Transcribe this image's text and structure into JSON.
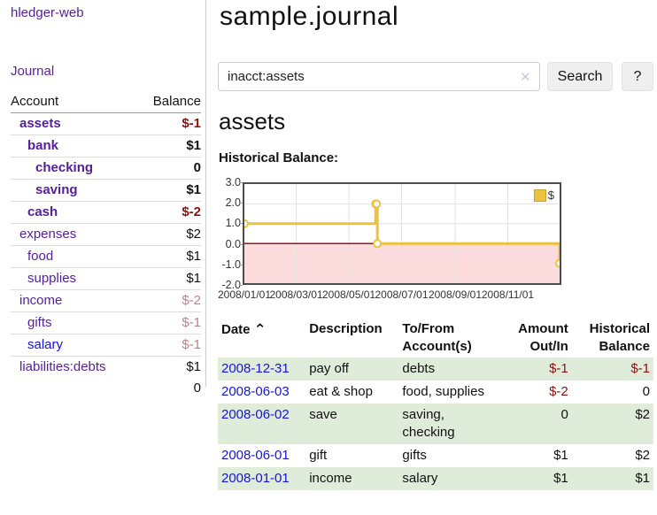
{
  "app": {
    "title": "hledger-web"
  },
  "sidebar": {
    "journal_link": "Journal",
    "accounts_table": {
      "headers": {
        "account": "Account",
        "balance": "Balance"
      },
      "rows": [
        {
          "name": "assets",
          "depth": 0,
          "bold": true,
          "name_color": "purple",
          "balance": "$-1",
          "balance_style": "neg-strong"
        },
        {
          "name": "bank",
          "depth": 1,
          "bold": true,
          "name_color": "purple",
          "balance": "$1",
          "balance_style": "pos"
        },
        {
          "name": "checking",
          "depth": 2,
          "bold": true,
          "name_color": "purple",
          "balance": "0",
          "balance_style": "pos"
        },
        {
          "name": "saving",
          "depth": 2,
          "bold": true,
          "name_color": "purple",
          "balance": "$1",
          "balance_style": "pos"
        },
        {
          "name": "cash",
          "depth": 1,
          "bold": true,
          "name_color": "purple",
          "balance": "$-2",
          "balance_style": "neg-strong"
        },
        {
          "name": "expenses",
          "depth": 0,
          "bold": false,
          "name_color": "purple",
          "balance": "$2",
          "balance_style": "pos"
        },
        {
          "name": "food",
          "depth": 1,
          "bold": false,
          "name_color": "purple",
          "balance": "$1",
          "balance_style": "pos"
        },
        {
          "name": "supplies",
          "depth": 1,
          "bold": false,
          "name_color": "purple",
          "balance": "$1",
          "balance_style": "pos"
        },
        {
          "name": "income",
          "depth": 0,
          "bold": false,
          "name_color": "purple",
          "balance": "$-2",
          "balance_style": "neg-soft"
        },
        {
          "name": "gifts",
          "depth": 1,
          "bold": false,
          "name_color": "purple",
          "balance": "$-1",
          "balance_style": "neg-soft"
        },
        {
          "name": "salary",
          "depth": 1,
          "bold": false,
          "name_color": "blue",
          "balance": "$-1",
          "balance_style": "neg-soft"
        },
        {
          "name": "liabilities:debts",
          "depth": 0,
          "bold": false,
          "name_color": "purple",
          "balance": "$1",
          "balance_style": "pos"
        }
      ],
      "total": "0"
    }
  },
  "header": {
    "title": "sample.journal"
  },
  "search": {
    "value": "inacct:assets",
    "clear_icon": "✕",
    "button_label": "Search",
    "help_label": "?"
  },
  "main": {
    "account_heading": "assets",
    "chart_label": "Historical Balance:"
  },
  "chart_data": {
    "type": "line",
    "style": "step",
    "title": "Historical Balance",
    "series": [
      {
        "name": "$",
        "color": "#edc240",
        "points": [
          [
            "2008-01-01",
            1
          ],
          [
            "2008-06-01",
            2
          ],
          [
            "2008-06-02",
            2
          ],
          [
            "2008-06-03",
            0
          ],
          [
            "2008-12-31",
            -1
          ]
        ]
      }
    ],
    "x_range": [
      "2008-01-01",
      "2008-12-31"
    ],
    "y_range": [
      -2,
      3
    ],
    "y_ticks": [
      "3.0",
      "2.0",
      "1.0",
      "0.0",
      "-1.0",
      "-2.0"
    ],
    "x_ticks": [
      "2008/01/01",
      "2008/03/01",
      "2008/05/01",
      "2008/07/01",
      "2008/09/01",
      "2008/11/01"
    ],
    "legend_position": "top-right",
    "grid": true,
    "negative_region_color": "#fcdcdc",
    "zero_line_color": "#8b0000"
  },
  "transactions_table": {
    "headers": [
      "Date",
      "Description",
      "To/From Account(s)",
      "Amount Out/In",
      "Historical Balance"
    ],
    "sort_icon": "⌃",
    "rows": [
      {
        "date": "2008-12-31",
        "description": "pay off",
        "accounts": "debts",
        "amount": "$-1",
        "amount_neg": true,
        "balance": "$-1",
        "balance_neg": true
      },
      {
        "date": "2008-06-03",
        "description": "eat & shop",
        "accounts": "food, supplies",
        "amount": "$-2",
        "amount_neg": true,
        "balance": "0",
        "balance_neg": false
      },
      {
        "date": "2008-06-02",
        "description": "save",
        "accounts": "saving,\nchecking",
        "amount": "0",
        "amount_neg": false,
        "balance": "$2",
        "balance_neg": false
      },
      {
        "date": "2008-06-01",
        "description": "gift",
        "accounts": "gifts",
        "amount": "$1",
        "amount_neg": false,
        "balance": "$2",
        "balance_neg": false
      },
      {
        "date": "2008-01-01",
        "description": "income",
        "accounts": "salary",
        "amount": "$1",
        "amount_neg": false,
        "balance": "$1",
        "balance_neg": false
      }
    ]
  },
  "colors": {
    "link_purple": "#551f99",
    "link_blue": "#1414dd",
    "negative_strong": "#8b1010",
    "negative_soft": "#c0808a",
    "row_stripe_green": "#e0ecda",
    "series_gold": "#edc240"
  }
}
